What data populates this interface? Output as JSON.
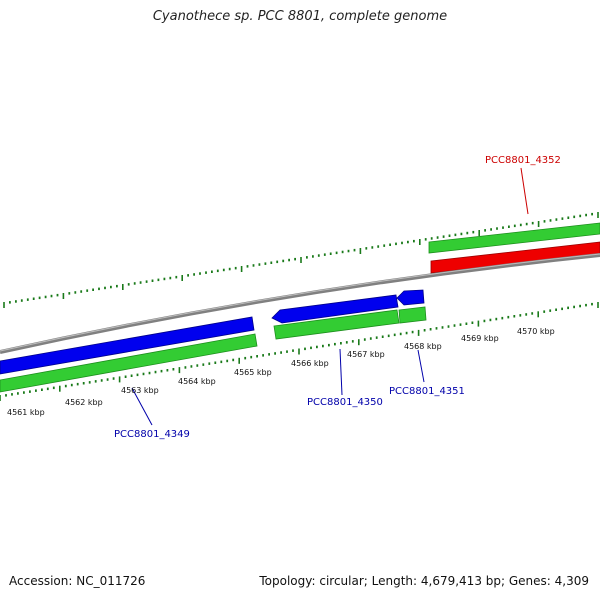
{
  "title": "Cyanothece sp. PCC 8801, complete genome",
  "footer": {
    "accession": "Accession: NC_011726",
    "summary": "Topology: circular; Length: 4,679,413 bp; Genes: 4,309"
  },
  "colors": {
    "forward_cds": "#0000ee",
    "forward_gene": "#33cc33",
    "reverse_cds": "#ee0000",
    "reverse_gene": "#33cc33",
    "backbone": "#808080",
    "ticks": "#1a7a1a",
    "label_forward": "#0000aa",
    "label_reverse": "#cc0000"
  },
  "ruler": {
    "unit": "kbp",
    "labels": [
      {
        "kbp": 4561,
        "text": "4561 kbp"
      },
      {
        "kbp": 4562,
        "text": "4562 kbp"
      },
      {
        "kbp": 4563,
        "text": "4563 kbp"
      },
      {
        "kbp": 4564,
        "text": "4564 kbp"
      },
      {
        "kbp": 4565,
        "text": "4565 kbp"
      },
      {
        "kbp": 4566,
        "text": "4566 kbp"
      },
      {
        "kbp": 4567,
        "text": "4567 kbp"
      },
      {
        "kbp": 4568,
        "text": "4568 kbp"
      },
      {
        "kbp": 4569,
        "text": "4569 kbp"
      },
      {
        "kbp": 4570,
        "text": "4570 kbp"
      }
    ]
  },
  "genes": [
    {
      "id": "PCC8801_4349",
      "label": "PCC8801_4349",
      "strand": "forward"
    },
    {
      "id": "PCC8801_4350",
      "label": "PCC8801_4350",
      "strand": "forward"
    },
    {
      "id": "PCC8801_4351",
      "label": "PCC8801_4351",
      "strand": "forward"
    },
    {
      "id": "PCC8801_4352",
      "label": "PCC8801_4352",
      "strand": "reverse"
    }
  ]
}
